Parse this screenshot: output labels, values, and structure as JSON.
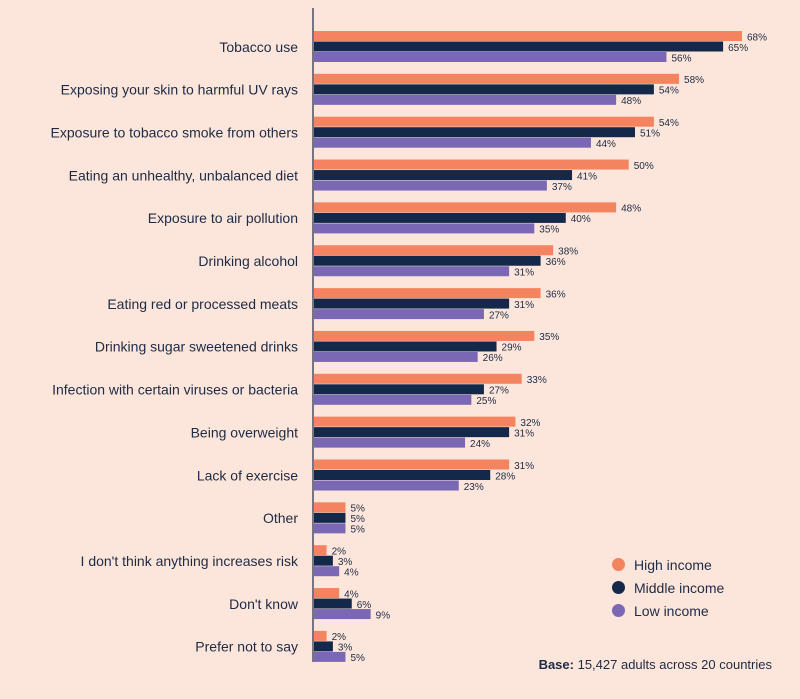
{
  "chart_data": {
    "type": "bar",
    "orientation": "horizontal",
    "categories": [
      "Tobacco use",
      "Exposing your skin to harmful UV rays",
      "Exposure to tobacco smoke from others",
      "Eating an unhealthy, unbalanced diet",
      "Exposure to air pollution",
      "Drinking alcohol",
      "Eating red or processed meats",
      "Drinking sugar sweetened drinks",
      "Infection with certain viruses or bacteria",
      "Being overweight",
      "Lack of exercise",
      "Other",
      "I don't think anything increases risk",
      "Don't know",
      "Prefer not to say"
    ],
    "series": [
      {
        "name": "High income",
        "color": "#f4845f",
        "values": [
          68,
          58,
          54,
          50,
          48,
          38,
          36,
          35,
          33,
          32,
          31,
          5,
          2,
          4,
          2
        ]
      },
      {
        "name": "Middle income",
        "color": "#14294a",
        "values": [
          65,
          54,
          51,
          41,
          40,
          36,
          31,
          29,
          27,
          31,
          28,
          5,
          3,
          6,
          3
        ]
      },
      {
        "name": "Low income",
        "color": "#7b68b5",
        "values": [
          56,
          48,
          44,
          37,
          35,
          31,
          27,
          26,
          25,
          24,
          23,
          5,
          4,
          9,
          5
        ]
      }
    ],
    "value_suffix": "%",
    "xlim": [
      0,
      70
    ],
    "legend_position": "bottom-right",
    "grid": false
  },
  "base_note": {
    "label": "Base:",
    "text": " 15,427 adults across 20 countries"
  }
}
